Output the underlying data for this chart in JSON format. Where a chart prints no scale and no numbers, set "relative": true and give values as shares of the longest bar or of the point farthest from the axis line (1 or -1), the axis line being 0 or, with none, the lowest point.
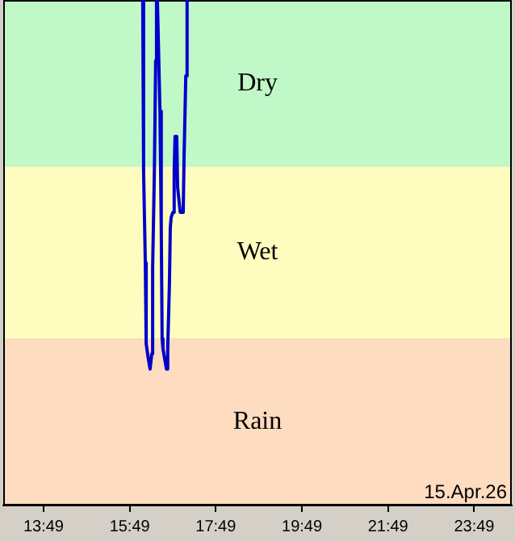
{
  "chart_data": {
    "type": "line",
    "relative": true,
    "x": [
      16.12,
      16.14,
      16.18,
      16.2,
      16.25,
      16.29,
      16.33,
      16.35,
      16.39,
      16.42,
      16.44,
      16.46,
      16.52,
      16.55,
      16.57,
      16.59,
      16.67,
      16.7,
      16.74,
      16.76,
      16.78,
      16.82,
      16.85,
      16.87,
      16.91,
      16.93,
      16.99,
      17.06,
      17.08,
      17.12,
      17.15
    ],
    "series": [
      {
        "color": "#0000cc",
        "values": [
          1,
          0.66,
          0.48,
          0.32,
          0.29,
          0.27,
          0.3,
          0.47,
          0.66,
          0.88,
          1,
          1,
          0.78,
          0.55,
          0.33,
          0.31,
          0.27,
          0.31,
          0.44,
          0.55,
          0.57,
          0.58,
          0.66,
          0.73,
          0.73,
          0.63,
          0.58,
          0.58,
          0.69,
          0.85,
          1
        ]
      }
    ],
    "xlim": [
      12.88,
      24.69
    ],
    "xticks": [
      {
        "value": 13.8167,
        "label": "13:49"
      },
      {
        "value": 15.8167,
        "label": "15:49"
      },
      {
        "value": 17.8167,
        "label": "17:49"
      },
      {
        "value": 19.8167,
        "label": "19:49"
      },
      {
        "value": 21.8167,
        "label": "21:49"
      },
      {
        "value": 23.8167,
        "label": "23:49"
      }
    ],
    "bands": [
      {
        "axis": "y",
        "from": 0.67,
        "to": 1,
        "label": "Dry",
        "color": "#c0f8c8"
      },
      {
        "axis": "y",
        "from": 0.33,
        "to": 0.67,
        "label": "Wet",
        "color": "#fffcc0"
      },
      {
        "axis": "y",
        "from": 0,
        "to": 0.33,
        "label": "Rain",
        "color": "#fddcc0"
      }
    ],
    "annotations": [
      "15.Apr.26"
    ],
    "grid": false,
    "legend": false,
    "marker": "none",
    "line_style": "solid"
  }
}
